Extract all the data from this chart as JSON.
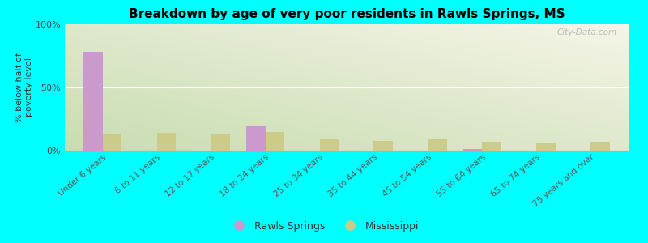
{
  "title": "Breakdown by age of very poor residents in Rawls Springs, MS",
  "categories": [
    "Under 6 years",
    "6 to 11 years",
    "12 to 17 years",
    "18 to 24 years",
    "25 to 34 years",
    "35 to 44 years",
    "45 to 54 years",
    "55 to 64 years",
    "65 to 74 years",
    "75 years and over"
  ],
  "rawls_springs": [
    78,
    0,
    0,
    20,
    0,
    0,
    0,
    1,
    0,
    0
  ],
  "mississippi": [
    13,
    14,
    13,
    15,
    9,
    8,
    9,
    7,
    6,
    7
  ],
  "rawls_color": "#cc99cc",
  "mississippi_color": "#cccc88",
  "background_color": "#00ffff",
  "grad_top_left": "#c8ddb0",
  "grad_bottom_right": "#f5f5e8",
  "ylabel": "% below half of\npoverty level",
  "ylim": [
    0,
    100
  ],
  "yticks": [
    0,
    50,
    100
  ],
  "ytick_labels": [
    "0%",
    "50%",
    "100%"
  ],
  "bar_width": 0.35,
  "legend_labels": [
    "Rawls Springs",
    "Mississippi"
  ],
  "watermark": "City-Data.com"
}
